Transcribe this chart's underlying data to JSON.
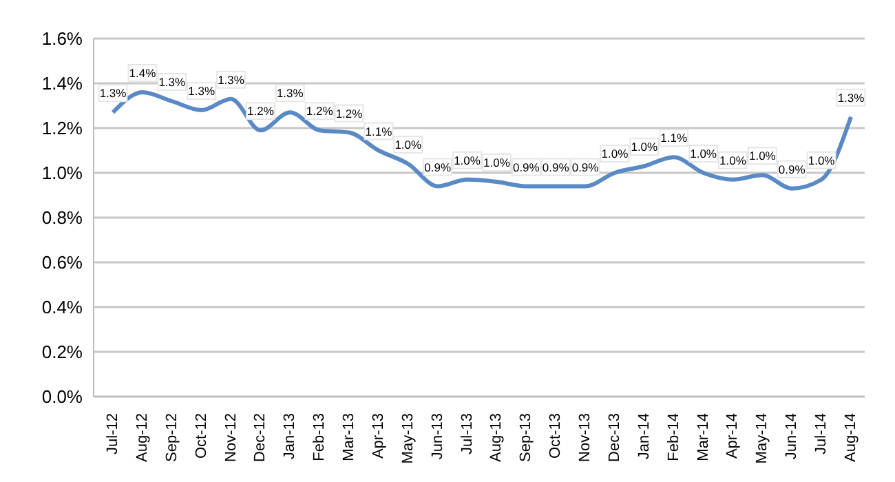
{
  "chart_data": {
    "type": "line",
    "categories": [
      "Jul-12",
      "Aug-12",
      "Sep-12",
      "Oct-12",
      "Nov-12",
      "Dec-12",
      "Jan-13",
      "Feb-13",
      "Mar-13",
      "Apr-13",
      "May-13",
      "Jun-13",
      "Jul-13",
      "Aug-13",
      "Sep-13",
      "Oct-13",
      "Nov-13",
      "Dec-13",
      "Jan-14",
      "Feb-14",
      "Mar-14",
      "Apr-14",
      "May-14",
      "Jun-14",
      "Jul-14",
      "Aug-14"
    ],
    "series": [
      {
        "color": "#5a8ac6",
        "values": [
          1.27,
          1.36,
          1.32,
          1.28,
          1.33,
          1.19,
          1.27,
          1.19,
          1.18,
          1.1,
          1.04,
          0.94,
          0.97,
          0.96,
          0.94,
          0.94,
          0.94,
          1.0,
          1.03,
          1.07,
          1.0,
          0.97,
          0.99,
          0.93,
          0.97,
          1.25
        ],
        "value_labels": [
          "1.3%",
          "1.4%",
          "1.3%",
          "1.3%",
          "1.3%",
          "1.2%",
          "1.3%",
          "1.2%",
          "1.2%",
          "1.1%",
          "1.0%",
          "0.9%",
          "1.0%",
          "1.0%",
          "0.9%",
          "0.9%",
          "0.9%",
          "1.0%",
          "1.0%",
          "1.1%",
          "1.0%",
          "1.0%",
          "1.0%",
          "0.9%",
          "1.0%",
          "1.3%"
        ]
      }
    ],
    "ylim": [
      0,
      1.6
    ],
    "yticks": [
      {
        "value": 0,
        "label": "0.0%"
      },
      {
        "value": 0.2,
        "label": "0.2%"
      },
      {
        "value": 0.4,
        "label": "0.4%"
      },
      {
        "value": 0.6,
        "label": "0.6%"
      },
      {
        "value": 0.8,
        "label": "0.8%"
      },
      {
        "value": 1.0,
        "label": "1.0%"
      },
      {
        "value": 1.2,
        "label": "1.2%"
      },
      {
        "value": 1.4,
        "label": "1.4%"
      },
      {
        "value": 1.6,
        "label": "1.6%"
      }
    ],
    "grid": "y",
    "legend": false,
    "marker": "none",
    "line_style": "solid"
  }
}
